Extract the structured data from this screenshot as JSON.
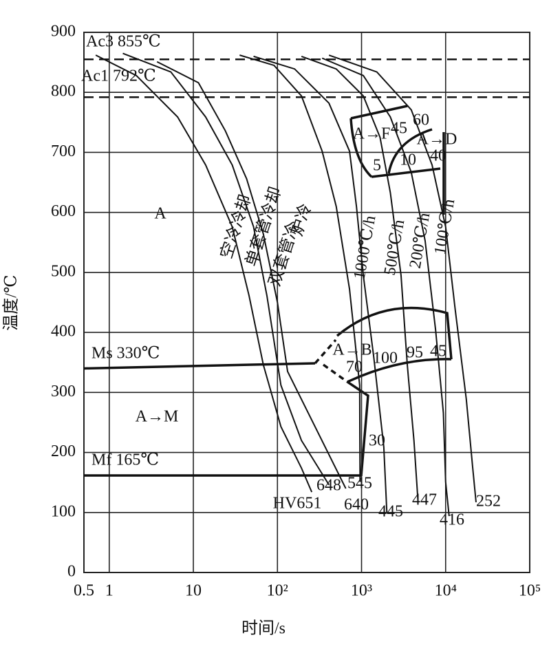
{
  "chart_data": {
    "type": "line",
    "x_label": "时间/s",
    "y_label": "温度/℃",
    "xlim": [
      0.5,
      100000
    ],
    "ylim": [
      0,
      900
    ],
    "x_log": true,
    "grid": true,
    "xticks": [
      0.5,
      1,
      10,
      {
        "value": 100,
        "label": "10²"
      },
      {
        "value": 1000,
        "label": "10³"
      },
      {
        "value": 10000,
        "label": "10⁴"
      },
      {
        "value": 100000,
        "label": "10⁵"
      }
    ],
    "yticks": [
      0,
      100,
      200,
      300,
      400,
      500,
      600,
      700,
      800,
      900
    ],
    "hlines": [
      {
        "value": 855,
        "label": "Ac3 855℃",
        "style": "dashed"
      },
      {
        "value": 792,
        "label": "Ac1 792℃",
        "style": "dashed"
      }
    ],
    "series": [
      {
        "name": "空冷冷却",
        "hardness": "HV651",
        "color": "#111",
        "x": [
          0.69,
          2.1,
          6.5,
          14,
          29,
          46,
          68,
          110,
          193,
          256
        ],
        "values": [
          862,
          828,
          759,
          679,
          576,
          461,
          346,
          243,
          174,
          134
        ]
      },
      {
        "name": "单套管冷却",
        "hardness": "648",
        "color": "#111",
        "x": [
          1.45,
          5.4,
          14,
          29,
          52,
          75,
          110,
          193,
          410
        ],
        "values": [
          865,
          834,
          759,
          679,
          576,
          461,
          312,
          220,
          146
        ]
      },
      {
        "name": "双套管冷",
        "hardness": "640",
        "color": "#111",
        "x": [
          3.7,
          11.5,
          24,
          43,
          68,
          100,
          132,
          280,
          650
        ],
        "values": [
          851,
          816,
          736,
          656,
          564,
          450,
          335,
          243,
          140
        ]
      },
      {
        "name": "炉冷",
        "hardness": "545",
        "color": "#111",
        "x": [
          35.5,
          91,
          193,
          340,
          500,
          720,
          950,
          960
        ],
        "values": [
          862,
          845,
          794,
          702,
          610,
          472,
          312,
          151
        ]
      },
      {
        "name": "1000℃/h",
        "hardness": "445",
        "color": "#111",
        "x": [
          52,
          160,
          410,
          720,
          870,
          1050,
          1400,
          1840,
          2000
        ],
        "values": [
          860,
          839,
          782,
          702,
          610,
          495,
          358,
          209,
          100
        ]
      },
      {
        "name": "500℃/h",
        "hardness": "447",
        "color": "#111",
        "x": [
          193,
          500,
          1050,
          1660,
          2200,
          2950,
          3500,
          4200,
          4700
        ],
        "values": [
          860,
          839,
          794,
          725,
          633,
          495,
          346,
          220,
          117
        ]
      },
      {
        "name": "200℃/h",
        "hardness": "416",
        "color": "#111",
        "x": [
          340,
          1050,
          2200,
          3900,
          5700,
          7600,
          9400,
          10000,
          11000
        ],
        "values": [
          857,
          828,
          759,
          667,
          553,
          404,
          266,
          151,
          94
        ]
      },
      {
        "name": "100℃/h",
        "hardness": "252",
        "color": "#111",
        "x": [
          410,
          1520,
          3900,
          6900,
          10000,
          13000,
          17600,
          21000,
          23000
        ],
        "values": [
          862,
          834,
          771,
          679,
          576,
          438,
          289,
          174,
          117
        ]
      }
    ],
    "annotations": [
      "A",
      "Ms 330℃",
      "A→M",
      "Mf 165℃",
      "A→F",
      "45",
      "60",
      "A→D",
      "5",
      "10",
      "40",
      "A→B",
      "70",
      "100",
      "95",
      "45",
      "30"
    ]
  }
}
